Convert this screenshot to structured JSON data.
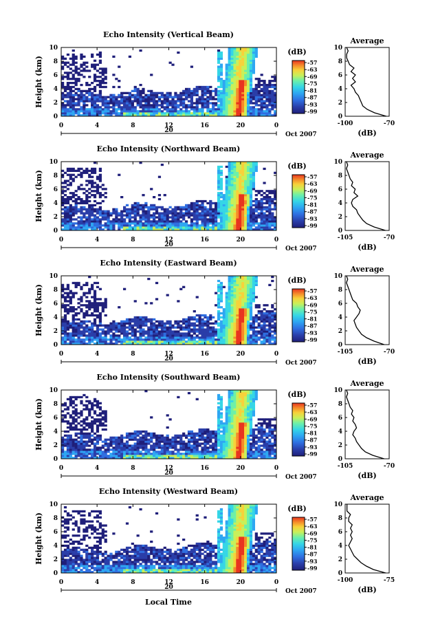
{
  "figure": {
    "bottom_xlabel": "Local Time",
    "corner_mark": ""
  },
  "chart_data": [
    {
      "type": "heatmap",
      "title": "Echo Intensity (Vertical Beam)",
      "ylabel": "Height (km)",
      "ylim": [
        0,
        10
      ],
      "yticks": [
        "0",
        "2",
        "4",
        "6",
        "8",
        "10"
      ],
      "xlim": [
        0,
        24
      ],
      "xticks": [
        "0",
        "4",
        "8",
        "12",
        "16",
        "20",
        "0"
      ],
      "date_label": "20",
      "month_year": "Oct 2007",
      "colorbar": {
        "label": "(dB)",
        "ticks": [
          "-57",
          "-63",
          "-69",
          "-75",
          "-81",
          "-87",
          "-93",
          "-99"
        ],
        "range": [
          -99,
          -57
        ]
      },
      "average_profile": {
        "title": "Average",
        "xlabel": "(dB)",
        "xticks": [
          "-100",
          "-70"
        ],
        "xlim": [
          -100,
          -70
        ],
        "heights_km": [
          0,
          0.5,
          1,
          1.5,
          2,
          2.5,
          3,
          3.5,
          4,
          4.5,
          5,
          5.5,
          6,
          6.5,
          7,
          7.5,
          8,
          8.5,
          9,
          9.5,
          10
        ],
        "values_db": [
          -72,
          -80,
          -85,
          -88,
          -89,
          -90,
          -91,
          -93,
          -94,
          -96,
          -93,
          -95,
          -93,
          -96,
          -94,
          -97,
          -98,
          -99,
          -99,
          -98,
          -99
        ]
      }
    },
    {
      "type": "heatmap",
      "title": "Echo Intensity (Northward Beam)",
      "ylabel": "Height (km)",
      "ylim": [
        0,
        10
      ],
      "yticks": [
        "0",
        "2",
        "4",
        "6",
        "8",
        "10"
      ],
      "xlim": [
        0,
        24
      ],
      "xticks": [
        "0",
        "4",
        "8",
        "12",
        "16",
        "20",
        "0"
      ],
      "date_label": "20",
      "month_year": "Oct 2007",
      "colorbar": {
        "label": "(dB)",
        "ticks": [
          "-57",
          "-63",
          "-69",
          "-75",
          "-81",
          "-87",
          "-93",
          "-99"
        ],
        "range": [
          -99,
          -57
        ]
      },
      "average_profile": {
        "title": "Average",
        "xlabel": "(dB)",
        "xticks": [
          "-105",
          "-70"
        ],
        "xlim": [
          -105,
          -70
        ],
        "heights_km": [
          0,
          0.5,
          1,
          1.5,
          2,
          2.5,
          3,
          3.5,
          4,
          4.5,
          5,
          5.5,
          6,
          6.5,
          7,
          7.5,
          8,
          8.5,
          9,
          9.5,
          10
        ],
        "values_db": [
          -73,
          -82,
          -88,
          -91,
          -93,
          -95,
          -96,
          -99,
          -100,
          -99,
          -95,
          -98,
          -97,
          -100,
          -99,
          -101,
          -102,
          -103,
          -104,
          -103,
          -104
        ]
      }
    },
    {
      "type": "heatmap",
      "title": "Echo Intensity (Eastward Beam)",
      "ylabel": "Height (km)",
      "ylim": [
        0,
        10
      ],
      "yticks": [
        "0",
        "2",
        "4",
        "6",
        "8",
        "10"
      ],
      "xlim": [
        0,
        24
      ],
      "xticks": [
        "0",
        "4",
        "8",
        "12",
        "16",
        "20",
        "0"
      ],
      "date_label": "20",
      "month_year": "Oct 2007",
      "colorbar": {
        "label": "(dB)",
        "ticks": [
          "-57",
          "-63",
          "-69",
          "-75",
          "-81",
          "-87",
          "-93",
          "-99"
        ],
        "range": [
          -99,
          -57
        ]
      },
      "average_profile": {
        "title": "Average",
        "xlabel": "(dB)",
        "xticks": [
          "-105",
          "-70"
        ],
        "xlim": [
          -105,
          -70
        ],
        "heights_km": [
          0,
          0.5,
          1,
          1.5,
          2,
          2.5,
          3,
          3.5,
          4,
          4.5,
          5,
          5.5,
          6,
          6.5,
          7,
          7.5,
          8,
          8.5,
          9,
          9.5,
          10
        ],
        "values_db": [
          -74,
          -82,
          -88,
          -92,
          -94,
          -96,
          -97,
          -98,
          -96,
          -94,
          -93,
          -95,
          -96,
          -99,
          -100,
          -101,
          -102,
          -103,
          -104,
          -103,
          -104
        ]
      }
    },
    {
      "type": "heatmap",
      "title": "Echo Intensity (Southward Beam)",
      "ylabel": "Height (km)",
      "ylim": [
        0,
        10
      ],
      "yticks": [
        "0",
        "2",
        "4",
        "6",
        "8",
        "10"
      ],
      "xlim": [
        0,
        24
      ],
      "xticks": [
        "0",
        "4",
        "8",
        "12",
        "16",
        "20",
        "0"
      ],
      "date_label": "20",
      "month_year": "Oct 2007",
      "colorbar": {
        "label": "(dB)",
        "ticks": [
          "-57",
          "-63",
          "-69",
          "-75",
          "-81",
          "-87",
          "-93",
          "-99"
        ],
        "range": [
          -99,
          -57
        ]
      },
      "average_profile": {
        "title": "Average",
        "xlabel": "(dB)",
        "xticks": [
          "-105",
          "-70"
        ],
        "xlim": [
          -105,
          -70
        ],
        "heights_km": [
          0,
          0.5,
          1,
          1.5,
          2,
          2.5,
          3,
          3.5,
          4,
          4.5,
          5,
          5.5,
          6,
          6.5,
          7,
          7.5,
          8,
          8.5,
          9,
          9.5,
          10
        ],
        "values_db": [
          -74,
          -83,
          -89,
          -92,
          -94,
          -96,
          -97,
          -99,
          -98,
          -96,
          -97,
          -99,
          -98,
          -100,
          -99,
          -101,
          -102,
          -103,
          -104,
          -103,
          -104
        ]
      }
    },
    {
      "type": "heatmap",
      "title": "Echo Intensity (Westward Beam)",
      "ylabel": "Height (km)",
      "ylim": [
        0,
        10
      ],
      "yticks": [
        "0",
        "2",
        "4",
        "6",
        "8",
        "10"
      ],
      "xlim": [
        0,
        24
      ],
      "xticks": [
        "0",
        "4",
        "8",
        "12",
        "16",
        "20",
        "0"
      ],
      "date_label": "20",
      "month_year": "Oct 2007",
      "colorbar": {
        "label": "(dB)",
        "ticks": [
          "-57",
          "-63",
          "-69",
          "-75",
          "-81",
          "-87",
          "-93",
          "-99"
        ],
        "range": [
          -99,
          -57
        ]
      },
      "average_profile": {
        "title": "Average",
        "xlabel": "(dB)",
        "xticks": [
          "-100",
          "-75"
        ],
        "xlim": [
          -100,
          -75
        ],
        "heights_km": [
          0,
          0.5,
          1,
          1.5,
          2,
          2.5,
          3,
          3.5,
          4,
          4.5,
          5,
          5.5,
          6,
          6.5,
          7,
          7.5,
          8,
          8.5,
          9,
          9.5,
          10
        ],
        "values_db": [
          -77,
          -84,
          -88,
          -91,
          -93,
          -95,
          -96,
          -97,
          -98,
          -97,
          -96,
          -97,
          -96,
          -97,
          -96,
          -98,
          -98,
          -97,
          -99,
          -99,
          -99
        ]
      }
    }
  ],
  "colors": {
    "colormap": [
      "#1f1f7a",
      "#2a3da8",
      "#2f6ee0",
      "#2ea6f2",
      "#35d6e6",
      "#6ef0a8",
      "#c8f05a",
      "#f7d23a",
      "#f58a2a",
      "#e8341f"
    ],
    "axis": "#000000",
    "background": "#ffffff"
  }
}
